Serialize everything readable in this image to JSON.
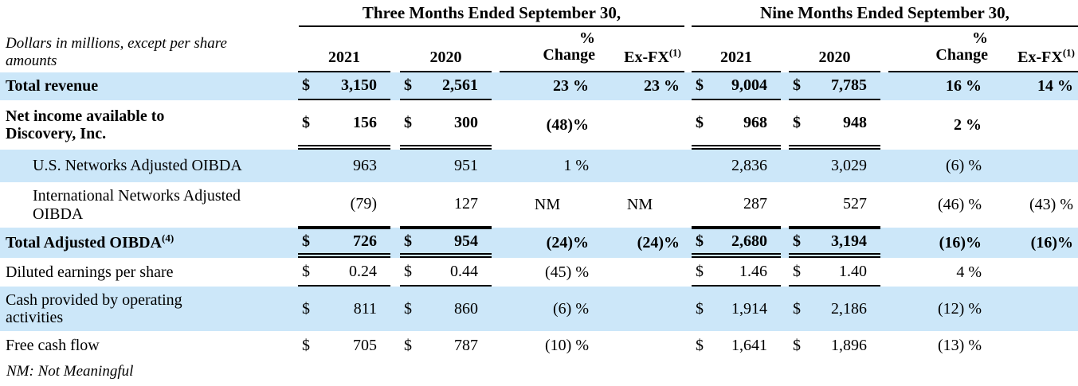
{
  "note": "Dollars in millions, except per share amounts",
  "footer_note": "NM: Not Meaningful",
  "colors": {
    "row_highlight": "#cce7f9",
    "rule": "#000000"
  },
  "header": {
    "period1_title": "Three Months Ended September 30,",
    "period2_title": "Nine Months Ended September 30,",
    "col_2021": "2021",
    "col_2020": "2020",
    "col_pct_line1": "%",
    "col_pct_line2": "Change",
    "col_exfx": "Ex-FX",
    "col_exfx_sup": "(1)"
  },
  "rows": [
    {
      "label": "Total revenue",
      "sup": "",
      "cells": {
        "tm2021": {
          "sym": "$",
          "val": "3,150"
        },
        "tm2020": {
          "sym": "$",
          "val": "2,561"
        },
        "tmchg": "23 %",
        "tmfx": "23 %",
        "nm2021": {
          "sym": "$",
          "val": "9,004"
        },
        "nm2020": {
          "sym": "$",
          "val": "7,785"
        },
        "nmchg": "16 %",
        "nmfx": "14 %"
      }
    },
    {
      "label": "Net income available to Discovery, Inc.",
      "sup": "",
      "cells": {
        "tm2021": {
          "sym": "$",
          "val": "156"
        },
        "tm2020": {
          "sym": "$",
          "val": "300"
        },
        "tmchg": "(48)%",
        "tmfx": "",
        "nm2021": {
          "sym": "$",
          "val": "968"
        },
        "nm2020": {
          "sym": "$",
          "val": "948"
        },
        "nmchg": "2 %",
        "nmfx": ""
      }
    },
    {
      "label": "U.S. Networks Adjusted OIBDA",
      "sup": "",
      "cells": {
        "tm2021": {
          "sym": "",
          "val": "963"
        },
        "tm2020": {
          "sym": "",
          "val": "951"
        },
        "tmchg": "1 %",
        "tmfx": "",
        "nm2021": {
          "sym": "",
          "val": "2,836"
        },
        "nm2020": {
          "sym": "",
          "val": "3,029"
        },
        "nmchg": "(6) %",
        "nmfx": ""
      }
    },
    {
      "label": "International Networks Adjusted OIBDA",
      "sup": "",
      "cells": {
        "tm2021": {
          "sym": "",
          "val": "(79)"
        },
        "tm2020": {
          "sym": "",
          "val": "127"
        },
        "tmchg": "NM",
        "tmfx": "NM",
        "nm2021": {
          "sym": "",
          "val": "287"
        },
        "nm2020": {
          "sym": "",
          "val": "527"
        },
        "nmchg": "(46) %",
        "nmfx": "(43) %"
      }
    },
    {
      "label": "Total Adjusted OIBDA",
      "sup": "(4)",
      "cells": {
        "tm2021": {
          "sym": "$",
          "val": "726"
        },
        "tm2020": {
          "sym": "$",
          "val": "954"
        },
        "tmchg": "(24)%",
        "tmfx": "(24)%",
        "nm2021": {
          "sym": "$",
          "val": "2,680"
        },
        "nm2020": {
          "sym": "$",
          "val": "3,194"
        },
        "nmchg": "(16)%",
        "nmfx": "(16)%"
      }
    },
    {
      "label": "Diluted earnings per share",
      "sup": "",
      "cells": {
        "tm2021": {
          "sym": "$",
          "val": "0.24"
        },
        "tm2020": {
          "sym": "$",
          "val": "0.44"
        },
        "tmchg": "(45) %",
        "tmfx": "",
        "nm2021": {
          "sym": "$",
          "val": "1.46"
        },
        "nm2020": {
          "sym": "$",
          "val": "1.40"
        },
        "nmchg": "4 %",
        "nmfx": ""
      }
    },
    {
      "label": "Cash provided by operating activities",
      "sup": "",
      "cells": {
        "tm2021": {
          "sym": "$",
          "val": "811"
        },
        "tm2020": {
          "sym": "$",
          "val": "860"
        },
        "tmchg": "(6) %",
        "tmfx": "",
        "nm2021": {
          "sym": "$",
          "val": "1,914"
        },
        "nm2020": {
          "sym": "$",
          "val": "2,186"
        },
        "nmchg": "(12) %",
        "nmfx": ""
      }
    },
    {
      "label": "Free cash flow",
      "sup": "",
      "cells": {
        "tm2021": {
          "sym": "$",
          "val": "705"
        },
        "tm2020": {
          "sym": "$",
          "val": "787"
        },
        "tmchg": "(10) %",
        "tmfx": "",
        "nm2021": {
          "sym": "$",
          "val": "1,641"
        },
        "nm2020": {
          "sym": "$",
          "val": "1,896"
        },
        "nmchg": "(13) %",
        "nmfx": ""
      }
    }
  ]
}
